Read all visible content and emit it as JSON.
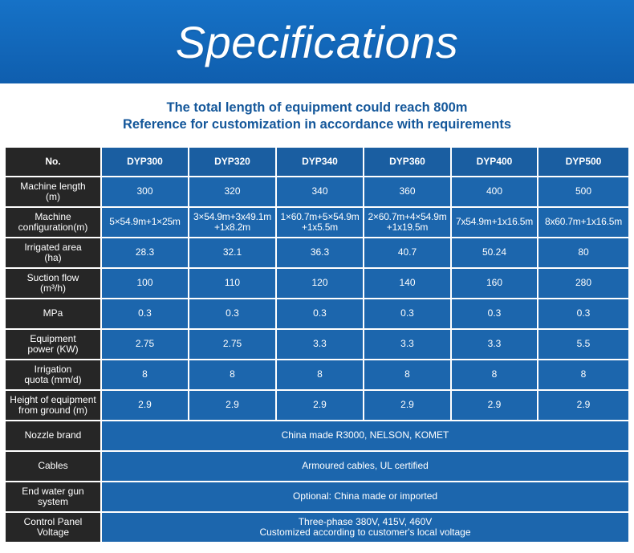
{
  "banner": {
    "title": "Specifications"
  },
  "intro": {
    "line1": "The total length of equipment could reach 800m",
    "line2": "Reference for customization in accordance with requirements"
  },
  "table": {
    "header": {
      "label": "No.",
      "models": [
        "DYP300",
        "DYP320",
        "DYP340",
        "DYP360",
        "DYP400",
        "DYP500"
      ]
    },
    "rows": [
      {
        "label_lines": [
          "Machine length",
          "(m)"
        ],
        "values": [
          "300",
          "320",
          "340",
          "360",
          "400",
          "500"
        ]
      },
      {
        "label_lines": [
          "Machine",
          "configuration(m)"
        ],
        "values": [
          [
            "5×54.9m+1×25m"
          ],
          [
            "3×54.9m+3x49.1m",
            "+1x8.2m"
          ],
          [
            "1×60.7m+5×54.9m",
            "+1x5.5m"
          ],
          [
            "2×60.7m+4×54.9m",
            "+1x19.5m"
          ],
          [
            "7x54.9m+1x16.5m"
          ],
          [
            "8x60.7m+1x16.5m"
          ]
        ]
      },
      {
        "label_lines": [
          "Irrigated area",
          "(ha)"
        ],
        "values": [
          "28.3",
          "32.1",
          "36.3",
          "40.7",
          "50.24",
          "80"
        ]
      },
      {
        "label_lines": [
          "Suction flow",
          "(m³/h)"
        ],
        "values": [
          "100",
          "110",
          "120",
          "140",
          "160",
          "280"
        ]
      },
      {
        "label_lines": [
          "MPa"
        ],
        "values": [
          "0.3",
          "0.3",
          "0.3",
          "0.3",
          "0.3",
          "0.3"
        ]
      },
      {
        "label_lines": [
          "Equipment",
          "power (KW)"
        ],
        "values": [
          "2.75",
          "2.75",
          "3.3",
          "3.3",
          "3.3",
          "5.5"
        ]
      },
      {
        "label_lines": [
          "Irrigation",
          "quota (mm/d)"
        ],
        "values": [
          "8",
          "8",
          "8",
          "8",
          "8",
          "8"
        ]
      },
      {
        "label_lines": [
          "Height of equipment",
          "from ground (m)"
        ],
        "values": [
          "2.9",
          "2.9",
          "2.9",
          "2.9",
          "2.9",
          "2.9"
        ]
      }
    ],
    "span_rows": [
      {
        "label_lines": [
          "Nozzle brand"
        ],
        "value_lines": [
          "China made R3000, NELSON, KOMET"
        ]
      },
      {
        "label_lines": [
          "Cables"
        ],
        "value_lines": [
          "Armoured cables, UL certified"
        ]
      },
      {
        "label_lines": [
          "End water gun",
          "system"
        ],
        "value_lines": [
          "Optional: China made or imported"
        ]
      },
      {
        "label_lines": [
          "Control Panel",
          "Voltage"
        ],
        "value_lines": [
          "Three-phase 380V, 415V, 460V",
          "Customized according to customer's local voltage"
        ]
      }
    ]
  }
}
